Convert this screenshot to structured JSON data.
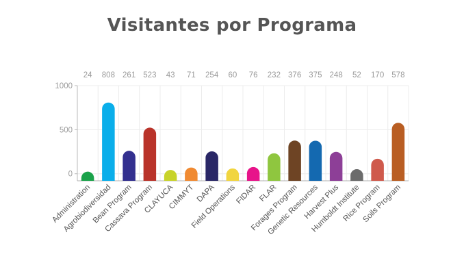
{
  "chart_data": {
    "type": "bar",
    "title": "Visitantes por Programa",
    "categories": [
      "Administration",
      "Agrobiodiversidad",
      "Bean Program",
      "Cassava Program",
      "CLAYUCA",
      "CIMMYT",
      "DAPA",
      "Field Operations",
      "FIDAR",
      "FLAR",
      "Forages Program",
      "Genetic Resources",
      "Harvest Plus",
      "Humboldt Institute",
      "Rice Program",
      "Soils Program"
    ],
    "values": [
      24,
      808,
      261,
      523,
      43,
      71,
      254,
      60,
      76,
      232,
      376,
      375,
      248,
      52,
      170,
      578
    ],
    "data_labels": [
      "24",
      "808",
      "261",
      "523",
      "43",
      "71",
      "254",
      "60",
      "76",
      "232",
      "376",
      "375",
      "248",
      "52",
      "170",
      "578"
    ],
    "colors": [
      "#1aa24a",
      "#0aaeea",
      "#33308f",
      "#b9332a",
      "#c8d32a",
      "#f08a32",
      "#2a2766",
      "#f1d53f",
      "#e7148a",
      "#8fc63f",
      "#6e4424",
      "#1469b0",
      "#8d3f97",
      "#6b6b6b",
      "#cf5a4c",
      "#b95e23"
    ],
    "yticks": [
      0,
      500,
      1000
    ],
    "ytick_labels": [
      "0",
      "500",
      "1000"
    ],
    "ylim": [
      -80,
      1000
    ],
    "xlabel": "",
    "ylabel": "",
    "grid": true
  }
}
